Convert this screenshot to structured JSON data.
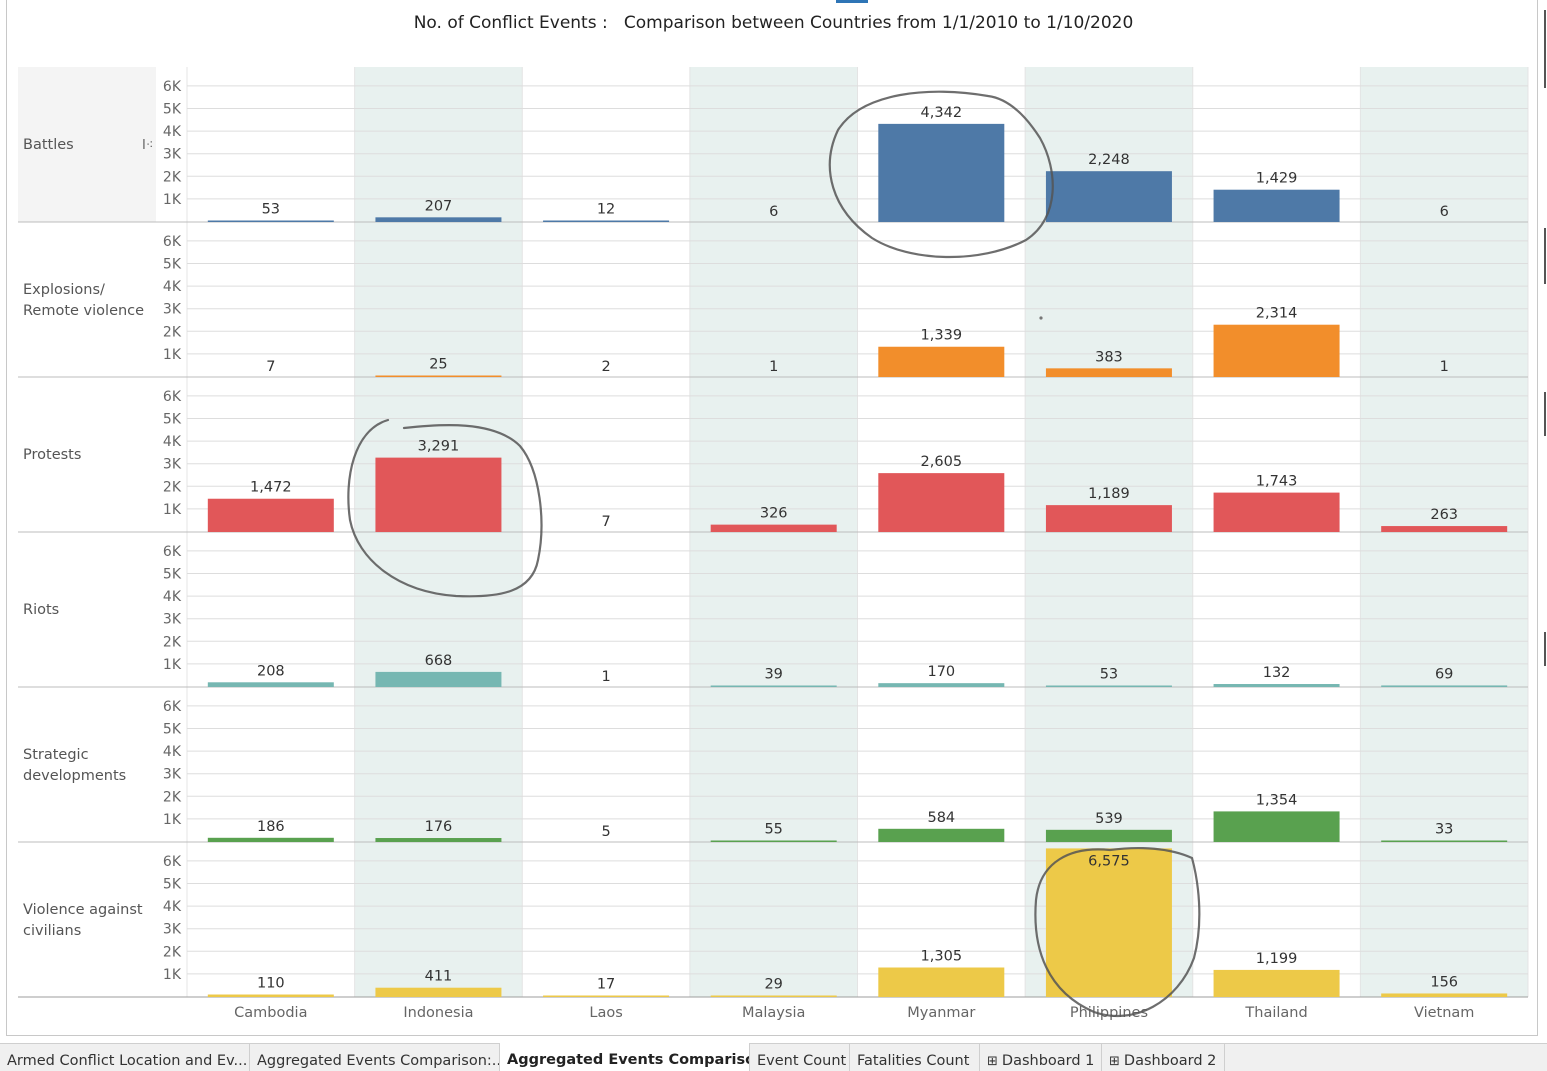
{
  "chart_data": {
    "type": "bar",
    "title": "No. of Conflict Events :   Comparison between Countries from 1/1/2010 to 1/10/2020",
    "categories": [
      "Cambodia",
      "Indonesia",
      "Laos",
      "Malaysia",
      "Myanmar",
      "Philippines",
      "Thailand",
      "Vietnam"
    ],
    "ylim": [
      0,
      7000
    ],
    "y_ticks": [
      "1K",
      "2K",
      "3K",
      "4K",
      "5K",
      "6K"
    ],
    "rows": [
      {
        "name": "Battles",
        "display": [
          "Battles"
        ],
        "color": "#4e79a7",
        "values": [
          53,
          207,
          12,
          6,
          4342,
          2248,
          1429,
          6
        ],
        "labels": [
          "53",
          "207",
          "12",
          "6",
          "4,342",
          "2,248",
          "1,429",
          "6"
        ]
      },
      {
        "name": "Explosions/ Remote violence",
        "display": [
          "Explosions/",
          "Remote violence"
        ],
        "color": "#f28e2b",
        "values": [
          7,
          25,
          2,
          1,
          1339,
          383,
          2314,
          1
        ],
        "labels": [
          "7",
          "25",
          "2",
          "1",
          "1,339",
          "383",
          "2,314",
          "1"
        ]
      },
      {
        "name": "Protests",
        "display": [
          "Protests"
        ],
        "color": "#e15759",
        "values": [
          1472,
          3291,
          7,
          326,
          2605,
          1189,
          1743,
          263
        ],
        "labels": [
          "1,472",
          "3,291",
          "7",
          "326",
          "2,605",
          "1,189",
          "1,743",
          "263"
        ]
      },
      {
        "name": "Riots",
        "display": [
          "Riots"
        ],
        "color": "#76b7b2",
        "values": [
          208,
          668,
          1,
          39,
          170,
          53,
          132,
          69
        ],
        "labels": [
          "208",
          "668",
          "1",
          "39",
          "170",
          "53",
          "132",
          "69"
        ]
      },
      {
        "name": "Strategic developments",
        "display": [
          "Strategic",
          "developments"
        ],
        "color": "#59a14f",
        "values": [
          186,
          176,
          5,
          55,
          584,
          539,
          1354,
          33
        ],
        "labels": [
          "186",
          "176",
          "5",
          "55",
          "584",
          "539",
          "1,354",
          "33"
        ]
      },
      {
        "name": "Violence against civilians",
        "display": [
          "Violence against",
          "civilians"
        ],
        "color": "#edc948",
        "values": [
          110,
          411,
          17,
          29,
          1305,
          6575,
          1199,
          156
        ],
        "labels": [
          "110",
          "411",
          "17",
          "29",
          "1,305",
          "6,575",
          "1,199",
          "156"
        ]
      }
    ],
    "legend": "none",
    "grid": true
  },
  "tabs": [
    {
      "label": "Armed Conflict Location and Ev...",
      "icon": ""
    },
    {
      "label": "Aggregated Events Comparison:...",
      "icon": ""
    },
    {
      "label": "Aggregated Events Compariso...",
      "icon": "",
      "active": true
    },
    {
      "label": "Event Count",
      "icon": ""
    },
    {
      "label": "Fatalities Count",
      "icon": ""
    },
    {
      "label": "Dashboard 1",
      "icon": "dashboard-icon"
    },
    {
      "label": "Dashboard 2",
      "icon": "dashboard-icon"
    }
  ],
  "colors": {
    "band": "#e8f1ef",
    "grid": "#dddddd",
    "header_bg": "#f4f4f4",
    "annotation": "#555555"
  }
}
